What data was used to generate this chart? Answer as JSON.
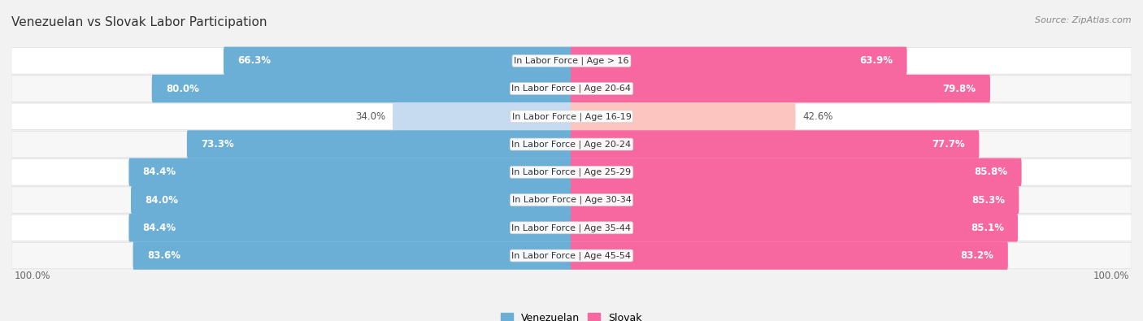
{
  "title": "Venezuelan vs Slovak Labor Participation",
  "source": "Source: ZipAtlas.com",
  "categories": [
    "In Labor Force | Age > 16",
    "In Labor Force | Age 20-64",
    "In Labor Force | Age 16-19",
    "In Labor Force | Age 20-24",
    "In Labor Force | Age 25-29",
    "In Labor Force | Age 30-34",
    "In Labor Force | Age 35-44",
    "In Labor Force | Age 45-54"
  ],
  "venezuelan": [
    66.3,
    80.0,
    34.0,
    73.3,
    84.4,
    84.0,
    84.4,
    83.6
  ],
  "slovak": [
    63.9,
    79.8,
    42.6,
    77.7,
    85.8,
    85.3,
    85.1,
    83.2
  ],
  "venezuelan_color": "#6baed6",
  "venezuelan_color_light": "#c6dbef",
  "slovak_color": "#f768a1",
  "slovak_color_light": "#fcc5c0",
  "bar_height": 0.65,
  "bg_color": "#f2f2f2",
  "row_bg": "#ffffff",
  "row_bg_alt": "#f7f7f7",
  "label_fontsize": 8.5,
  "title_fontsize": 11,
  "legend_fontsize": 9,
  "axis_max": 100.0,
  "footer_label": "100.0%"
}
